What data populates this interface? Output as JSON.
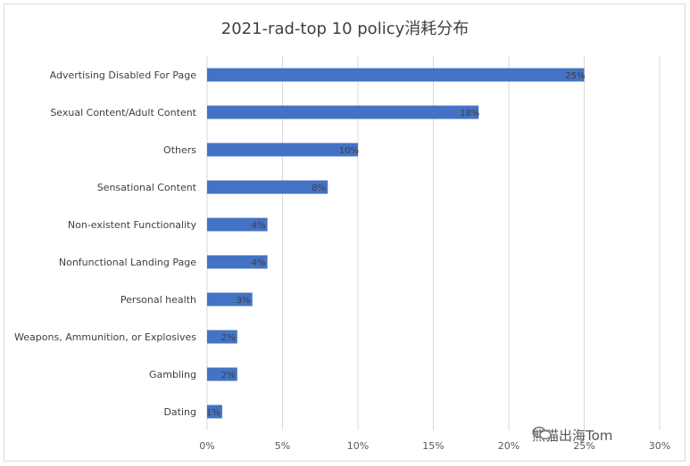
{
  "chart_data": {
    "type": "bar",
    "orientation": "horizontal",
    "title": "2021-rad-top 10 policy消耗分布",
    "xlabel": "",
    "ylabel": "",
    "xlim": [
      0,
      30
    ],
    "x_ticks": [
      "0%",
      "5%",
      "10%",
      "15%",
      "20%",
      "25%",
      "30%"
    ],
    "grid": true,
    "categories": [
      "Advertising Disabled For Page",
      "Sexual Content/Adult Content",
      "Others",
      "Sensational Content",
      "Non-existent Functionality",
      "Nonfunctional Landing Page",
      "Personal health",
      "Weapons, Ammunition, or Explosives",
      "Gambling",
      "Dating"
    ],
    "values": [
      25,
      18,
      10,
      8,
      4,
      4,
      3,
      2,
      2,
      1
    ],
    "data_labels": [
      "25%",
      "18%",
      "10%",
      "8%",
      "4%",
      "4%",
      "3%",
      "2%",
      "2%",
      "1%"
    ],
    "bar_color": "#4472c4"
  },
  "watermark": {
    "text": "熊猫出海Tom"
  }
}
